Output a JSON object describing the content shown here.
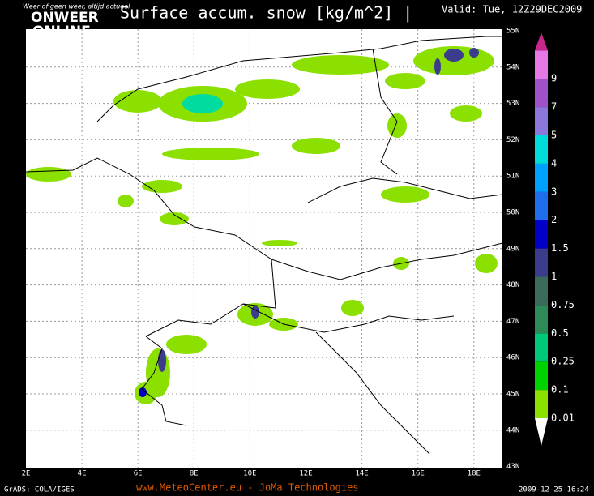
{
  "header": {
    "tagline": "Weer of geen weer, altijd actueel",
    "logo_top": "ONWEER",
    "logo_bottom": "ONLINE",
    "title": "Surface accum. snow [kg/m^2] |",
    "valid": "Valid: Tue, 12Z29DEC2009"
  },
  "map": {
    "lon_labels": [
      "2E",
      "4E",
      "6E",
      "8E",
      "10E",
      "12E",
      "14E",
      "16E",
      "18E"
    ],
    "lat_labels": [
      "55N",
      "54N",
      "53N",
      "52N",
      "51N",
      "50N",
      "49N",
      "48N",
      "47N",
      "46N",
      "45N",
      "44N",
      "43N"
    ]
  },
  "colorbar": {
    "labels": [
      "0.01",
      "0.1",
      "0.25",
      "0.5",
      "0.75",
      "1",
      "1.5",
      "2",
      "3",
      "4",
      "5",
      "7",
      "9"
    ]
  },
  "footer": {
    "left": "GrADS: COLA/IGES",
    "center": "www.MeteoCenter.eu  -  JoMa Technologies",
    "right": "2009-12-25-16:24"
  }
}
